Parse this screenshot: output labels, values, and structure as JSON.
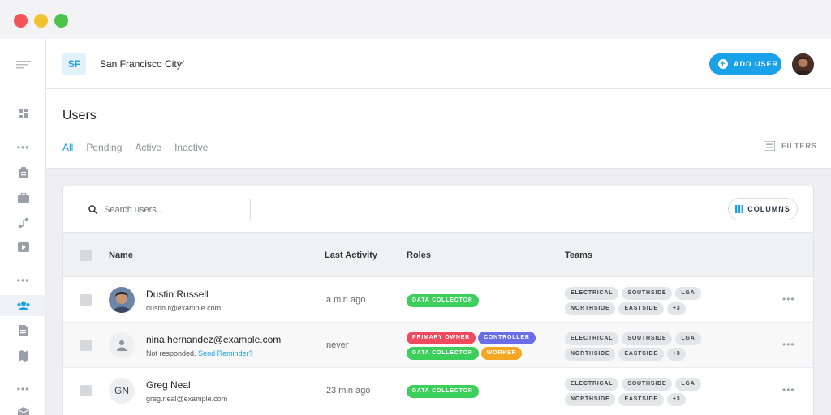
{
  "window": {
    "controls": [
      "close",
      "minimize",
      "maximize"
    ]
  },
  "sidebar": {
    "items": [
      {
        "icon": "menu-icon"
      },
      {
        "icon": "dashboard-icon"
      },
      {
        "icon": "more-dots"
      },
      {
        "icon": "clipboard-icon"
      },
      {
        "icon": "briefcase-icon"
      },
      {
        "icon": "route-icon"
      },
      {
        "icon": "video-icon"
      },
      {
        "icon": "more-dots"
      },
      {
        "icon": "users-icon",
        "active": true
      },
      {
        "icon": "document-icon"
      },
      {
        "icon": "map-icon"
      },
      {
        "icon": "more-dots"
      },
      {
        "icon": "box-icon"
      }
    ],
    "dots": "•••"
  },
  "header": {
    "org_badge": "SF",
    "org_name": "San Francisco City",
    "add_user_label": "ADD USER",
    "accent": "#1aa1e8"
  },
  "page": {
    "title": "Users",
    "tabs": [
      "All",
      "Pending",
      "Active",
      "Inactive"
    ],
    "active_tab": "All",
    "filters_label": "FILTERS"
  },
  "table": {
    "search_placeholder": "Search users...",
    "columns_label": "COLUMNS",
    "headers": {
      "name": "Name",
      "last_activity": "Last Activity",
      "roles": "Roles",
      "teams": "Teams"
    },
    "rows": [
      {
        "name": "Dustin Russell",
        "email": "dustin.r@example.com",
        "last_activity": "a min ago",
        "avatar": "photo",
        "roles": [
          {
            "label": "DATA COLLECTOR",
            "color": "#3ccf5c"
          }
        ],
        "teams": [
          "ELECTRICAL",
          "SOUTHSIDE",
          "LGA",
          "NORTHSIDE",
          "EASTSIDE",
          "+3"
        ]
      },
      {
        "name": "nina.hernandez@example.com",
        "status_text": "Not responded.",
        "action_link": "Send Reminder?",
        "last_activity": "never",
        "avatar": "person-icon",
        "roles": [
          {
            "label": "PRIMARY OWNER",
            "color": "#f04a5e"
          },
          {
            "label": "CONTROLLER",
            "color": "#6a6ee6"
          },
          {
            "label": "DATA COLLECTOR",
            "color": "#3ccf5c"
          },
          {
            "label": "WORKER",
            "color": "#f5a623"
          }
        ],
        "teams": [
          "ELECTRICAL",
          "SOUTHSIDE",
          "LGA",
          "NORTHSIDE",
          "EASTSIDE",
          "+3"
        ]
      },
      {
        "name": "Greg Neal",
        "email": "greg.neal@example.com",
        "last_activity": "23 min ago",
        "avatar_initials": "GN",
        "roles": [
          {
            "label": "DATA COLLECTOR",
            "color": "#3ccf5c"
          }
        ],
        "teams": [
          "ELECTRICAL",
          "SOUTHSIDE",
          "LGA",
          "NORTHSIDE",
          "EASTSIDE",
          "+3"
        ]
      }
    ]
  }
}
